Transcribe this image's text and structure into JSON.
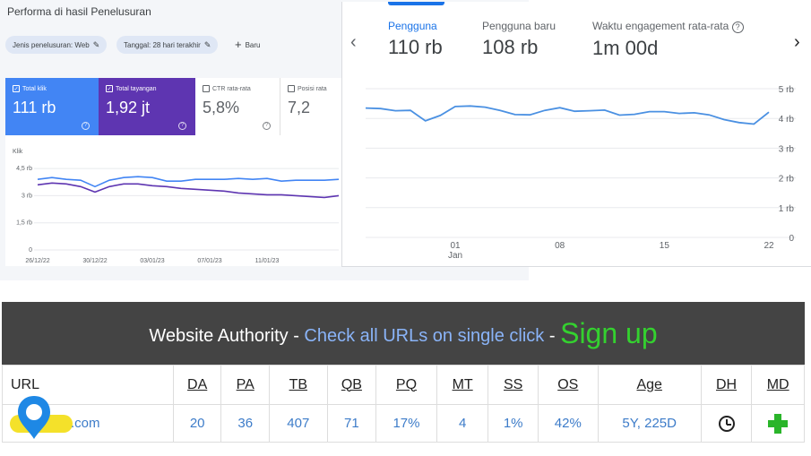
{
  "gsc": {
    "title": "Performa di hasil Penelusuran",
    "chips": [
      "Jenis penelusuran: Web",
      "Tanggal: 28 hari terakhir"
    ],
    "new_label": "Baru",
    "cards": [
      {
        "label": "Total klik",
        "value": "111 rb",
        "checked": true
      },
      {
        "label": "Total tayangan",
        "value": "1,92 jt",
        "checked": true
      },
      {
        "label": "CTR rata-rata",
        "value": "5,8%",
        "checked": false
      },
      {
        "label": "Posisi rata",
        "value": "7,2",
        "checked": false
      }
    ],
    "chart": {
      "ylabel": "Klik",
      "yticks": [
        "4,5 rb",
        "3 rb",
        "1,5 rb",
        "0"
      ],
      "xticks": [
        "26/12/22",
        "30/12/22",
        "03/01/23",
        "07/01/23",
        "11/01/23"
      ]
    }
  },
  "ga": {
    "tabs": [
      {
        "label": "Pengguna",
        "value": "110 rb"
      },
      {
        "label": "Pengguna baru",
        "value": "108 rb"
      },
      {
        "label": "Waktu engagement rata-rata",
        "value": "1m 00d"
      }
    ],
    "yticks": [
      "5 rb",
      "4 rb",
      "3 rb",
      "2 rb",
      "1 rb",
      "0"
    ],
    "xticks": [
      {
        "day": "01",
        "month": "Jan"
      },
      {
        "day": "08"
      },
      {
        "day": "15"
      },
      {
        "day": "22"
      }
    ]
  },
  "wa": {
    "banner_title": "Website Authority",
    "banner_sep1": " - ",
    "banner_link": "Check all URLs on single click",
    "banner_sep2": " - ",
    "banner_signup": "Sign up",
    "headers": [
      "URL",
      "DA",
      "PA",
      "TB",
      "QB",
      "PQ",
      "MT",
      "SS",
      "OS",
      "Age",
      "DH",
      "MD"
    ],
    "row": {
      "url_suffix": ".com",
      "values": [
        "20",
        "36",
        "407",
        "71",
        "17%",
        "4",
        "1%",
        "42%",
        "5Y, 225D"
      ]
    }
  },
  "chart_data": [
    {
      "type": "line",
      "title": "",
      "xlabel": "",
      "ylabel": "Klik",
      "ylim": [
        0,
        5000
      ],
      "x": [
        "26/12/22",
        "27/12/22",
        "28/12/22",
        "29/12/22",
        "30/12/22",
        "31/12/22",
        "01/01/23",
        "02/01/23",
        "03/01/23",
        "04/01/23",
        "05/01/23",
        "06/01/23",
        "07/01/23",
        "08/01/23",
        "09/01/23",
        "10/01/23",
        "11/01/23",
        "12/01/23",
        "13/01/23",
        "14/01/23",
        "15/01/23",
        "16/01/23"
      ],
      "series": [
        {
          "name": "Total klik",
          "values": [
            3900,
            4000,
            3900,
            3850,
            3500,
            3850,
            4000,
            4050,
            4000,
            3800,
            3800,
            3900,
            3900,
            3900,
            3950,
            3900,
            3950,
            3800,
            3850,
            3850,
            3850,
            3900
          ]
        },
        {
          "name": "Total tayangan",
          "values": [
            3600,
            3700,
            3650,
            3500,
            3200,
            3500,
            3650,
            3650,
            3550,
            3500,
            3400,
            3350,
            3300,
            3250,
            3150,
            3100,
            3050,
            3050,
            3000,
            2950,
            2900,
            3000
          ]
        }
      ]
    },
    {
      "type": "line",
      "title": "",
      "xlabel": "",
      "ylabel": "",
      "ylim": [
        0,
        5000
      ],
      "x": [
        "2022-12-26",
        "2022-12-27",
        "2022-12-28",
        "2022-12-29",
        "2022-12-30",
        "2022-12-31",
        "2023-01-01",
        "2023-01-02",
        "2023-01-03",
        "2023-01-04",
        "2023-01-05",
        "2023-01-06",
        "2023-01-07",
        "2023-01-08",
        "2023-01-09",
        "2023-01-10",
        "2023-01-11",
        "2023-01-12",
        "2023-01-13",
        "2023-01-14",
        "2023-01-15",
        "2023-01-16",
        "2023-01-17",
        "2023-01-18",
        "2023-01-19",
        "2023-01-20",
        "2023-01-21",
        "2023-01-22"
      ],
      "series": [
        {
          "name": "Pengguna",
          "values": [
            4350,
            4330,
            4260,
            4270,
            3920,
            4100,
            4400,
            4420,
            4380,
            4270,
            4130,
            4120,
            4270,
            4360,
            4240,
            4260,
            4280,
            4110,
            4140,
            4230,
            4230,
            4170,
            4190,
            4120,
            3960,
            3860,
            3810,
            4210
          ]
        }
      ]
    }
  ]
}
